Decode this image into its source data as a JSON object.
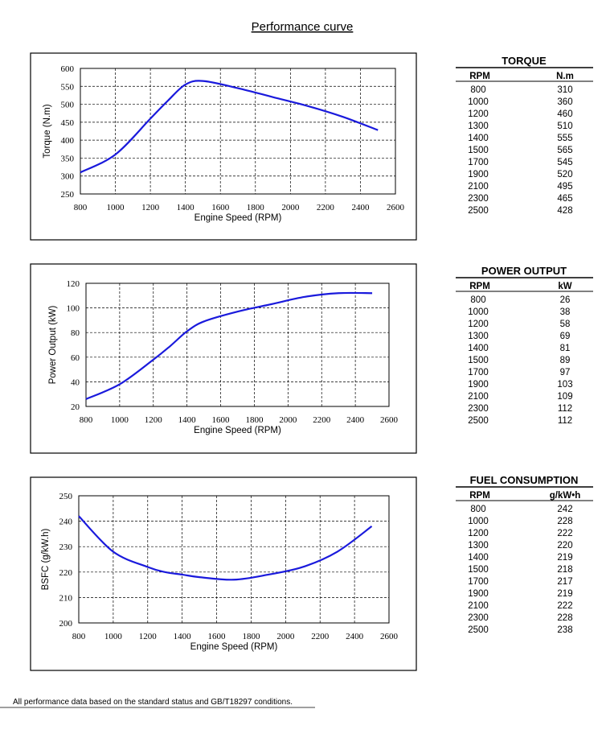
{
  "title": "Performance curve",
  "chart_data": [
    {
      "type": "line",
      "ylabel": "Torque (N.m)",
      "xlabel": "Engine Speed (RPM)",
      "x": [
        800,
        1000,
        1200,
        1300,
        1400,
        1500,
        1700,
        1900,
        2100,
        2300,
        2500
      ],
      "series": [
        {
          "color": "#1a1adc",
          "values": [
            310,
            360,
            460,
            510,
            555,
            565,
            545,
            520,
            495,
            465,
            428
          ]
        }
      ],
      "xlim": [
        800,
        2600
      ],
      "ylim": [
        250,
        600
      ],
      "xticks": [
        800,
        1000,
        1200,
        1400,
        1600,
        1800,
        2000,
        2200,
        2400,
        2600
      ],
      "yticks": [
        250,
        300,
        350,
        400,
        450,
        500,
        550,
        600
      ],
      "grid": true
    },
    {
      "type": "line",
      "ylabel": "Power Output (kW)",
      "xlabel": "Engine Speed (RPM)",
      "x": [
        800,
        1000,
        1200,
        1300,
        1400,
        1500,
        1700,
        1900,
        2100,
        2300,
        2500
      ],
      "series": [
        {
          "color": "#1a1adc",
          "values": [
            26,
            38,
            58,
            69,
            81,
            89,
            97,
            103,
            109,
            112,
            112
          ]
        }
      ],
      "xlim": [
        800,
        2600
      ],
      "ylim": [
        20,
        120
      ],
      "xticks": [
        800,
        1000,
        1200,
        1400,
        1600,
        1800,
        2000,
        2200,
        2400,
        2600
      ],
      "yticks": [
        20,
        40,
        60,
        80,
        100,
        120
      ],
      "grid": true
    },
    {
      "type": "line",
      "ylabel": "BSFC (g/kW.h)",
      "xlabel": "Engine Speed (RPM)",
      "x": [
        800,
        1000,
        1200,
        1300,
        1400,
        1500,
        1700,
        1900,
        2100,
        2300,
        2500
      ],
      "series": [
        {
          "color": "#1a1adc",
          "values": [
            242,
            228,
            222,
            220,
            219,
            218,
            217,
            219,
            222,
            228,
            238
          ]
        }
      ],
      "xlim": [
        800,
        2600
      ],
      "ylim": [
        200,
        250
      ],
      "xticks": [
        800,
        1000,
        1200,
        1400,
        1600,
        1800,
        2000,
        2200,
        2400,
        2600
      ],
      "yticks": [
        200,
        210,
        220,
        230,
        240,
        250
      ],
      "grid": true
    }
  ],
  "tables": [
    {
      "title": "TORQUE",
      "columns": [
        "RPM",
        "N.m"
      ],
      "rows": [
        [
          800,
          310
        ],
        [
          1000,
          360
        ],
        [
          1200,
          460
        ],
        [
          1300,
          510
        ],
        [
          1400,
          555
        ],
        [
          1500,
          565
        ],
        [
          1700,
          545
        ],
        [
          1900,
          520
        ],
        [
          2100,
          495
        ],
        [
          2300,
          465
        ],
        [
          2500,
          428
        ]
      ]
    },
    {
      "title": "POWER OUTPUT",
      "columns": [
        "RPM",
        "kW"
      ],
      "rows": [
        [
          800,
          26
        ],
        [
          1000,
          38
        ],
        [
          1200,
          58
        ],
        [
          1300,
          69
        ],
        [
          1400,
          81
        ],
        [
          1500,
          89
        ],
        [
          1700,
          97
        ],
        [
          1900,
          103
        ],
        [
          2100,
          109
        ],
        [
          2300,
          112
        ],
        [
          2500,
          112
        ]
      ]
    },
    {
      "title": "FUEL CONSUMPTION",
      "columns": [
        "RPM",
        "g/kW•h"
      ],
      "rows": [
        [
          800,
          242
        ],
        [
          1000,
          228
        ],
        [
          1200,
          222
        ],
        [
          1300,
          220
        ],
        [
          1400,
          219
        ],
        [
          1500,
          218
        ],
        [
          1700,
          217
        ],
        [
          1900,
          219
        ],
        [
          2100,
          222
        ],
        [
          2300,
          228
        ],
        [
          2500,
          238
        ]
      ]
    }
  ],
  "footnote": "All performance data based on the standard status and GB/T18297 conditions."
}
